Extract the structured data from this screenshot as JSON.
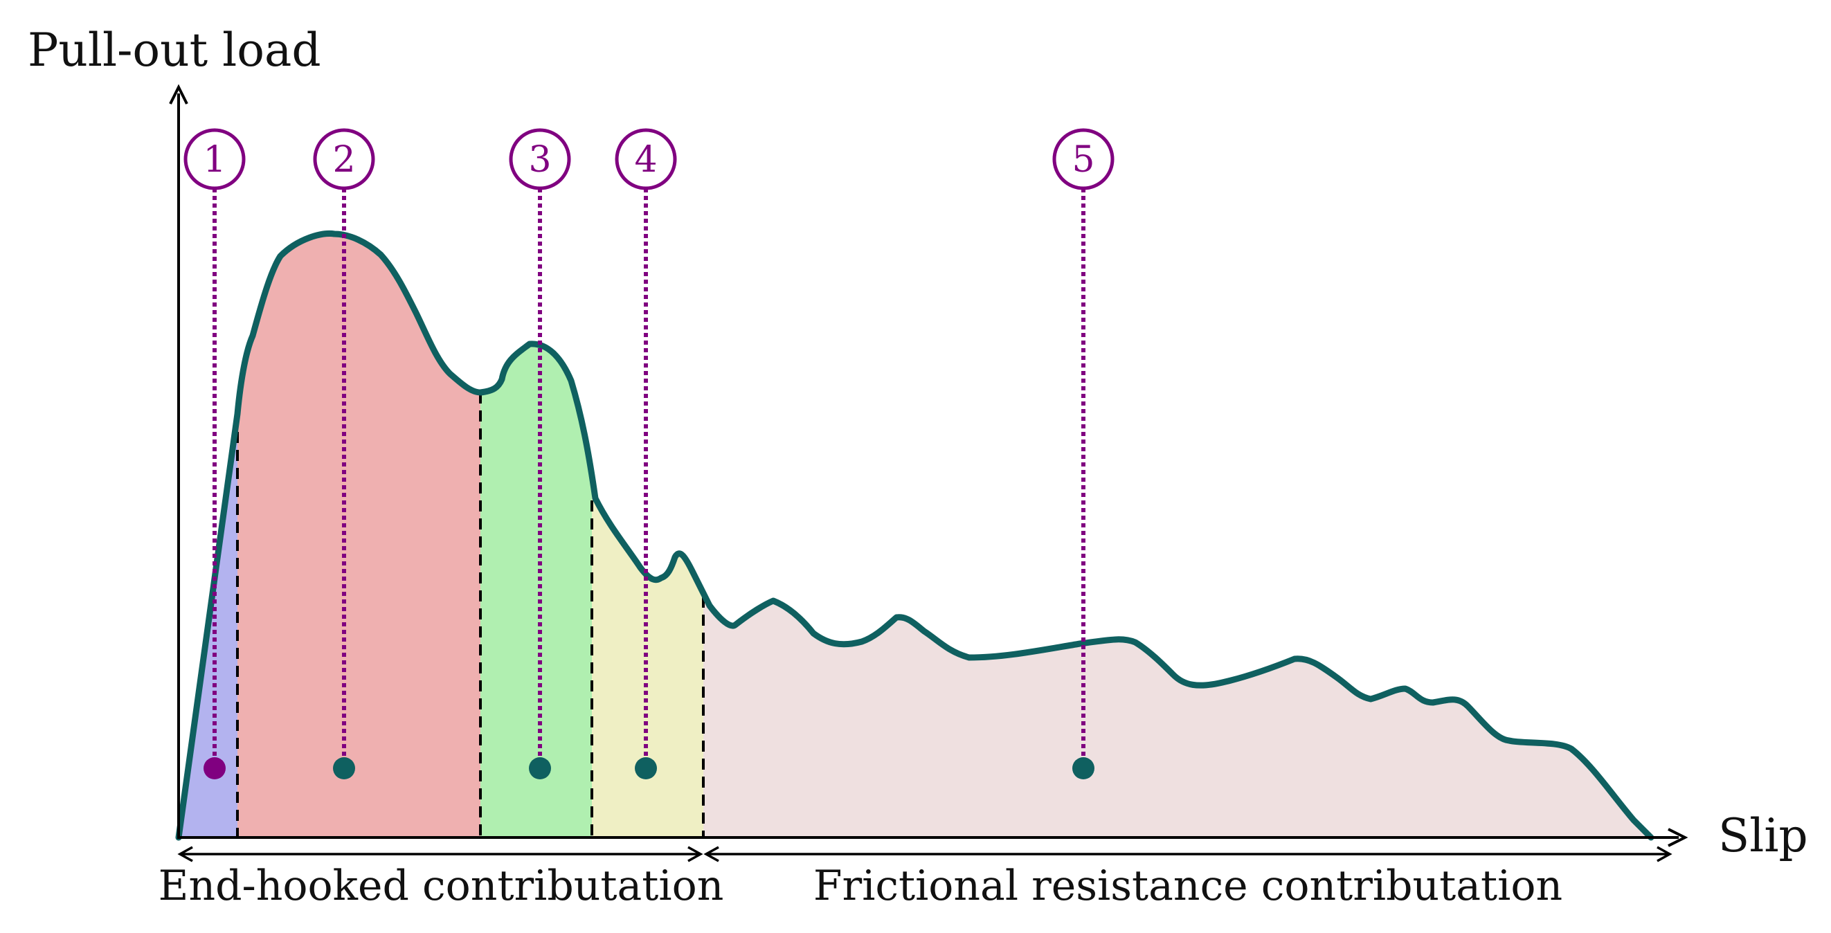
{
  "axes": {
    "y_label": "Pull-out load",
    "x_label": "Slip"
  },
  "contributions": {
    "end_hooked": "End-hooked contributation",
    "frictional": "Frictional resistance contributation"
  },
  "stages": [
    {
      "number": "1",
      "fill": "#b3b3ef",
      "marker_color": "#800080"
    },
    {
      "number": "2",
      "fill": "#efb0b0",
      "marker_color": "#0f6060"
    },
    {
      "number": "3",
      "fill": "#b0efb0",
      "marker_color": "#0f6060"
    },
    {
      "number": "4",
      "fill": "#efefc4",
      "marker_color": "#0f6060"
    },
    {
      "number": "5",
      "fill": "#efe0e0",
      "marker_color": "#0f6060"
    }
  ],
  "colors": {
    "curve": "#0f6060",
    "annotation": "#800080",
    "axis": "#000000"
  }
}
